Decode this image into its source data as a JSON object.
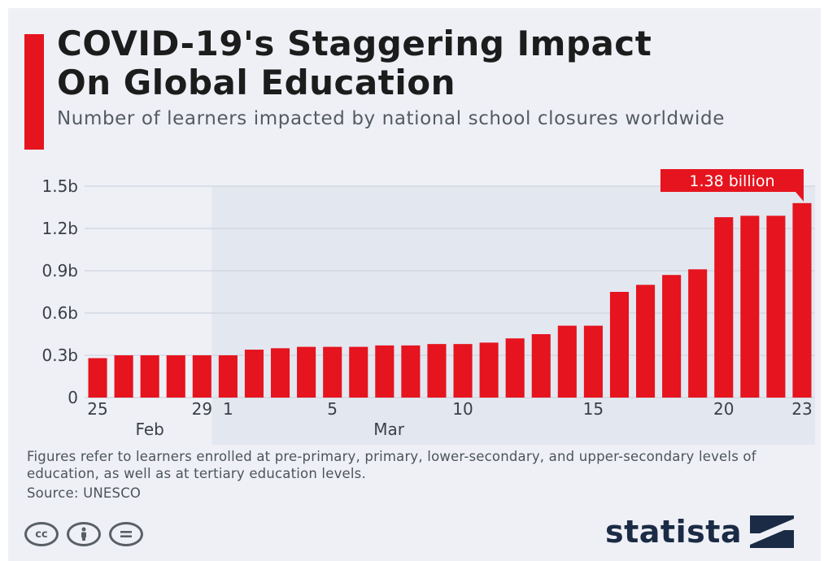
{
  "header": {
    "title_line1": "COVID-19's Staggering Impact",
    "title_line2": "On Global Education",
    "subtitle": "Number of learners impacted by national school closures worldwide"
  },
  "chart_data": {
    "type": "bar",
    "title": "COVID-19's Staggering Impact On Global Education",
    "subtitle": "Number of learners impacted by national school closures worldwide",
    "unit": "billion learners",
    "categories": [
      "25",
      "26",
      "27",
      "28",
      "29",
      "1",
      "2",
      "3",
      "4",
      "5",
      "6",
      "7",
      "8",
      "9",
      "10",
      "11",
      "12",
      "13",
      "14",
      "15",
      "16",
      "17",
      "18",
      "19",
      "20",
      "21",
      "22",
      "23"
    ],
    "tick_labels": [
      {
        "index": 0,
        "label": "25"
      },
      {
        "index": 4,
        "label": "29"
      },
      {
        "index": 5,
        "label": "1"
      },
      {
        "index": 9,
        "label": "5"
      },
      {
        "index": 14,
        "label": "10"
      },
      {
        "index": 19,
        "label": "15"
      },
      {
        "index": 24,
        "label": "20"
      },
      {
        "index": 27,
        "label": "23"
      }
    ],
    "month_labels": [
      {
        "label": "Feb",
        "from_index": 0,
        "to_index": 4
      },
      {
        "label": "Mar",
        "from_index": 5,
        "to_index": 27
      }
    ],
    "values": [
      0.28,
      0.3,
      0.3,
      0.3,
      0.3,
      0.3,
      0.34,
      0.35,
      0.36,
      0.36,
      0.36,
      0.37,
      0.37,
      0.38,
      0.38,
      0.39,
      0.42,
      0.45,
      0.51,
      0.51,
      0.75,
      0.8,
      0.87,
      0.91,
      1.28,
      1.29,
      1.29,
      1.38
    ],
    "yticks": [
      0,
      0.3,
      0.6,
      0.9,
      1.2,
      1.5
    ],
    "ytick_labels": [
      "0",
      "0.3b",
      "0.6b",
      "0.9b",
      "1.2b",
      "1.5b"
    ],
    "ylim": [
      0,
      1.5
    ],
    "highlight_index": 27,
    "annotation": "1.38 billion",
    "grid": true,
    "bar_color": "#e5141e",
    "shade_from_index": 5
  },
  "footnote": "Figures refer to learners enrolled at pre-primary, primary, lower-secondary, and upper-secondary levels of education, as well as at tertiary education levels.",
  "source": "Source: UNESCO",
  "licenses": [
    "cc",
    "by",
    "nd"
  ],
  "brand": {
    "name": "statista",
    "color": "#1b2b45",
    "icon": "statista-logo-icon"
  },
  "colors": {
    "accent": "#e5141e",
    "background": "#eef0f6",
    "shade": "#e3e7f0"
  }
}
